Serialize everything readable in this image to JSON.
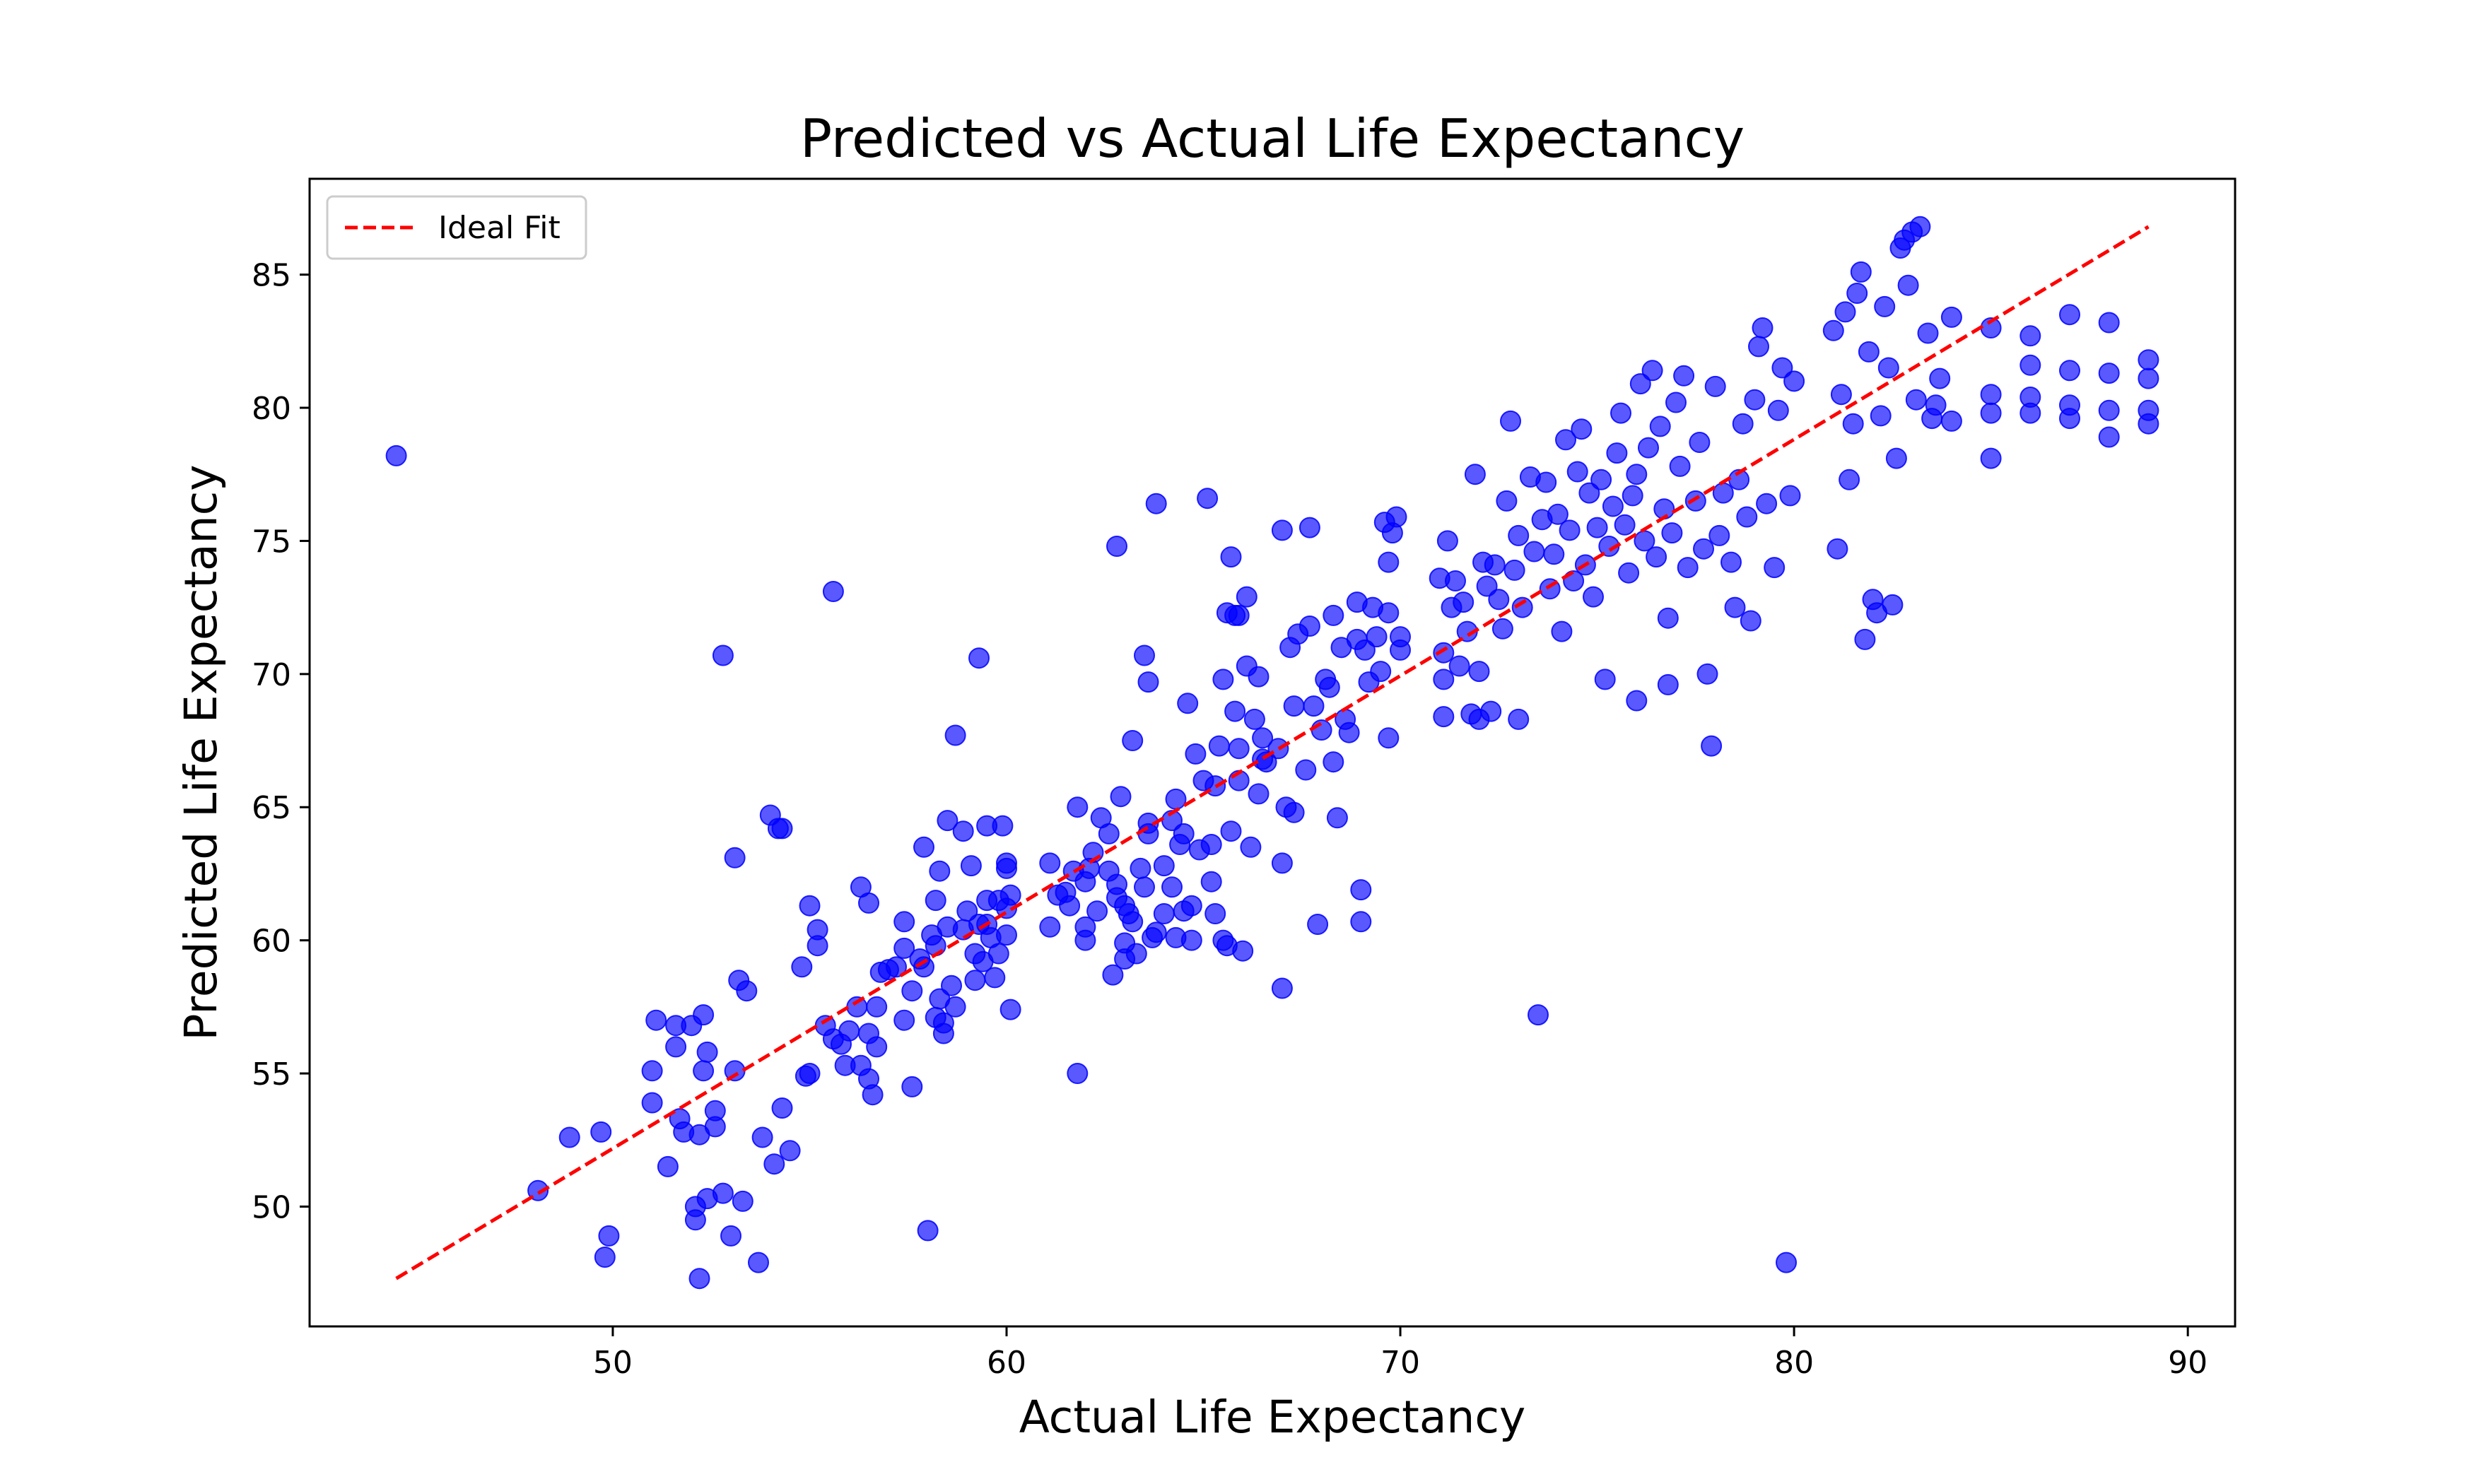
{
  "chart_data": {
    "type": "scatter",
    "title": "Predicted vs Actual Life Expectancy",
    "xlabel": "Actual Life Expectancy",
    "ylabel": "Predicted Life Expectancy",
    "xlim": [
      42.3,
      91.2
    ],
    "ylim": [
      45.5,
      88.6
    ],
    "xticks": [
      50,
      60,
      70,
      80,
      90
    ],
    "yticks": [
      50,
      55,
      60,
      65,
      70,
      75,
      80,
      85
    ],
    "grid": false,
    "legend": {
      "position": "upper-left",
      "entries": [
        "Ideal Fit"
      ]
    },
    "colors": {
      "points": "#0000ff",
      "ideal_line": "#ff0000"
    },
    "ideal_fit": {
      "x": [
        44.5,
        89.0
      ],
      "y": [
        47.3,
        86.8
      ]
    },
    "points": [
      [
        44.5,
        78.2
      ],
      [
        48.1,
        50.6
      ],
      [
        48.9,
        52.6
      ],
      [
        49.7,
        52.8
      ],
      [
        49.8,
        48.1
      ],
      [
        49.9,
        48.9
      ],
      [
        51.0,
        55.1
      ],
      [
        51.0,
        53.9
      ],
      [
        51.1,
        57.0
      ],
      [
        51.4,
        51.5
      ],
      [
        51.6,
        56.8
      ],
      [
        51.6,
        56.0
      ],
      [
        51.7,
        53.3
      ],
      [
        51.8,
        52.8
      ],
      [
        52.0,
        56.8
      ],
      [
        52.1,
        50.0
      ],
      [
        52.1,
        49.5
      ],
      [
        52.2,
        52.7
      ],
      [
        52.2,
        47.3
      ],
      [
        52.3,
        57.2
      ],
      [
        52.3,
        55.1
      ],
      [
        52.4,
        50.3
      ],
      [
        52.4,
        55.8
      ],
      [
        52.6,
        53.0
      ],
      [
        52.6,
        53.6
      ],
      [
        52.8,
        50.5
      ],
      [
        52.8,
        70.7
      ],
      [
        53.0,
        48.9
      ],
      [
        53.1,
        55.1
      ],
      [
        53.1,
        63.1
      ],
      [
        53.2,
        58.5
      ],
      [
        53.3,
        50.2
      ],
      [
        53.4,
        58.1
      ],
      [
        53.7,
        47.9
      ],
      [
        53.8,
        52.6
      ],
      [
        54.0,
        64.7
      ],
      [
        54.1,
        51.6
      ],
      [
        54.2,
        64.2
      ],
      [
        54.3,
        64.2
      ],
      [
        54.3,
        53.7
      ],
      [
        54.5,
        52.1
      ],
      [
        54.8,
        59.0
      ],
      [
        54.9,
        54.9
      ],
      [
        55.0,
        61.3
      ],
      [
        55.0,
        55.0
      ],
      [
        55.2,
        59.8
      ],
      [
        55.2,
        60.4
      ],
      [
        55.4,
        56.8
      ],
      [
        55.6,
        73.1
      ],
      [
        55.6,
        56.3
      ],
      [
        55.8,
        56.1
      ],
      [
        55.9,
        55.3
      ],
      [
        56.0,
        56.6
      ],
      [
        56.2,
        57.5
      ],
      [
        56.3,
        55.3
      ],
      [
        56.3,
        62.0
      ],
      [
        56.5,
        56.5
      ],
      [
        56.5,
        61.4
      ],
      [
        56.5,
        54.8
      ],
      [
        56.6,
        54.2
      ],
      [
        56.7,
        56.0
      ],
      [
        56.7,
        57.5
      ],
      [
        56.8,
        58.8
      ],
      [
        57.0,
        58.9
      ],
      [
        57.2,
        59.0
      ],
      [
        57.4,
        60.7
      ],
      [
        57.4,
        57.0
      ],
      [
        57.4,
        59.7
      ],
      [
        57.6,
        58.1
      ],
      [
        57.6,
        54.5
      ],
      [
        57.8,
        59.3
      ],
      [
        57.9,
        63.5
      ],
      [
        57.9,
        59.0
      ],
      [
        58.0,
        49.1
      ],
      [
        58.1,
        60.2
      ],
      [
        58.2,
        59.8
      ],
      [
        58.2,
        57.1
      ],
      [
        58.2,
        61.5
      ],
      [
        58.3,
        62.6
      ],
      [
        58.3,
        57.8
      ],
      [
        58.4,
        56.9
      ],
      [
        58.4,
        56.5
      ],
      [
        58.5,
        64.5
      ],
      [
        58.5,
        60.5
      ],
      [
        58.6,
        58.3
      ],
      [
        58.7,
        57.5
      ],
      [
        58.7,
        67.7
      ],
      [
        58.9,
        60.4
      ],
      [
        58.9,
        64.1
      ],
      [
        59.0,
        61.1
      ],
      [
        59.1,
        62.8
      ],
      [
        59.2,
        59.5
      ],
      [
        59.2,
        58.5
      ],
      [
        59.3,
        60.6
      ],
      [
        59.3,
        70.6
      ],
      [
        59.4,
        59.2
      ],
      [
        59.5,
        60.6
      ],
      [
        59.5,
        64.3
      ],
      [
        59.5,
        61.5
      ],
      [
        59.6,
        60.1
      ],
      [
        59.7,
        58.6
      ],
      [
        59.8,
        59.5
      ],
      [
        59.8,
        61.5
      ],
      [
        59.9,
        64.3
      ],
      [
        60.0,
        62.7
      ],
      [
        60.0,
        62.9
      ],
      [
        60.0,
        61.2
      ],
      [
        60.0,
        60.2
      ],
      [
        60.1,
        57.4
      ],
      [
        60.1,
        61.7
      ],
      [
        61.1,
        60.5
      ],
      [
        61.1,
        62.9
      ],
      [
        61.3,
        61.7
      ],
      [
        61.5,
        61.8
      ],
      [
        61.6,
        61.3
      ],
      [
        61.7,
        62.6
      ],
      [
        61.8,
        55.0
      ],
      [
        61.8,
        65.0
      ],
      [
        62.0,
        60.5
      ],
      [
        62.0,
        62.2
      ],
      [
        62.0,
        60.0
      ],
      [
        62.1,
        62.7
      ],
      [
        62.2,
        63.3
      ],
      [
        62.3,
        61.1
      ],
      [
        62.4,
        64.6
      ],
      [
        62.6,
        62.6
      ],
      [
        62.6,
        64.0
      ],
      [
        62.7,
        58.7
      ],
      [
        62.8,
        74.8
      ],
      [
        62.8,
        62.1
      ],
      [
        62.8,
        61.6
      ],
      [
        62.9,
        65.4
      ],
      [
        63.0,
        61.3
      ],
      [
        63.0,
        59.9
      ],
      [
        63.0,
        59.3
      ],
      [
        63.1,
        61.0
      ],
      [
        63.2,
        60.7
      ],
      [
        63.2,
        67.5
      ],
      [
        63.3,
        59.5
      ],
      [
        63.4,
        62.7
      ],
      [
        63.5,
        70.7
      ],
      [
        63.5,
        62.0
      ],
      [
        63.6,
        64.0
      ],
      [
        63.6,
        69.7
      ],
      [
        63.6,
        64.4
      ],
      [
        63.7,
        60.1
      ],
      [
        63.8,
        76.4
      ],
      [
        63.8,
        60.3
      ],
      [
        64.0,
        62.8
      ],
      [
        64.0,
        61.0
      ],
      [
        64.2,
        64.5
      ],
      [
        64.2,
        62.0
      ],
      [
        64.3,
        65.3
      ],
      [
        64.3,
        60.1
      ],
      [
        64.4,
        63.6
      ],
      [
        64.5,
        61.1
      ],
      [
        64.5,
        64.0
      ],
      [
        64.6,
        68.9
      ],
      [
        64.7,
        60.0
      ],
      [
        64.7,
        61.3
      ],
      [
        64.8,
        67.0
      ],
      [
        64.9,
        63.4
      ],
      [
        65.0,
        66.0
      ],
      [
        65.1,
        76.6
      ],
      [
        65.2,
        62.2
      ],
      [
        65.2,
        63.6
      ],
      [
        65.3,
        65.8
      ],
      [
        65.3,
        61.0
      ],
      [
        65.4,
        67.3
      ],
      [
        65.5,
        60.0
      ],
      [
        65.5,
        69.8
      ],
      [
        65.6,
        59.8
      ],
      [
        65.6,
        72.3
      ],
      [
        65.7,
        74.4
      ],
      [
        65.7,
        64.1
      ],
      [
        65.8,
        72.2
      ],
      [
        65.8,
        68.6
      ],
      [
        65.9,
        67.2
      ],
      [
        65.9,
        66.0
      ],
      [
        65.9,
        72.2
      ],
      [
        66.0,
        59.6
      ],
      [
        66.1,
        70.3
      ],
      [
        66.1,
        72.9
      ],
      [
        66.2,
        63.5
      ],
      [
        66.3,
        68.3
      ],
      [
        66.4,
        69.9
      ],
      [
        66.4,
        65.5
      ],
      [
        66.5,
        66.8
      ],
      [
        66.5,
        67.6
      ],
      [
        66.6,
        66.7
      ],
      [
        66.9,
        67.2
      ],
      [
        67.0,
        75.4
      ],
      [
        67.0,
        58.2
      ],
      [
        67.0,
        62.9
      ],
      [
        67.1,
        65.0
      ],
      [
        67.2,
        71.0
      ],
      [
        67.3,
        68.8
      ],
      [
        67.3,
        64.8
      ],
      [
        67.4,
        71.5
      ],
      [
        67.6,
        66.4
      ],
      [
        67.7,
        75.5
      ],
      [
        67.7,
        71.8
      ],
      [
        67.8,
        68.8
      ],
      [
        67.9,
        60.6
      ],
      [
        68.0,
        67.9
      ],
      [
        68.1,
        69.8
      ],
      [
        68.2,
        69.5
      ],
      [
        68.3,
        66.7
      ],
      [
        68.3,
        72.2
      ],
      [
        68.4,
        64.6
      ],
      [
        68.5,
        71.0
      ],
      [
        68.6,
        68.3
      ],
      [
        68.7,
        67.8
      ],
      [
        68.9,
        72.7
      ],
      [
        68.9,
        71.3
      ],
      [
        69.0,
        61.9
      ],
      [
        69.0,
        60.7
      ],
      [
        69.1,
        70.9
      ],
      [
        69.2,
        69.7
      ],
      [
        69.3,
        72.5
      ],
      [
        69.4,
        71.4
      ],
      [
        69.5,
        70.1
      ],
      [
        69.6,
        75.7
      ],
      [
        69.7,
        67.6
      ],
      [
        69.7,
        74.2
      ],
      [
        69.7,
        72.3
      ],
      [
        69.8,
        75.3
      ],
      [
        69.9,
        75.9
      ],
      [
        70.0,
        71.4
      ],
      [
        70.0,
        70.9
      ],
      [
        71.0,
        73.6
      ],
      [
        71.1,
        70.8
      ],
      [
        71.1,
        68.4
      ],
      [
        71.1,
        69.8
      ],
      [
        71.2,
        75.0
      ],
      [
        71.3,
        72.5
      ],
      [
        71.4,
        73.5
      ],
      [
        71.5,
        70.3
      ],
      [
        71.6,
        72.7
      ],
      [
        71.7,
        71.6
      ],
      [
        71.8,
        68.5
      ],
      [
        71.9,
        77.5
      ],
      [
        72.0,
        70.1
      ],
      [
        72.0,
        68.3
      ],
      [
        72.1,
        74.2
      ],
      [
        72.2,
        73.3
      ],
      [
        72.3,
        68.6
      ],
      [
        72.4,
        74.1
      ],
      [
        72.5,
        72.8
      ],
      [
        72.6,
        71.7
      ],
      [
        72.7,
        76.5
      ],
      [
        72.8,
        79.5
      ],
      [
        72.9,
        73.9
      ],
      [
        73.0,
        68.3
      ],
      [
        73.0,
        75.2
      ],
      [
        73.1,
        72.5
      ],
      [
        73.3,
        77.4
      ],
      [
        73.4,
        74.6
      ],
      [
        73.5,
        57.2
      ],
      [
        73.6,
        75.8
      ],
      [
        73.7,
        77.2
      ],
      [
        73.8,
        73.2
      ],
      [
        73.9,
        74.5
      ],
      [
        74.0,
        76.0
      ],
      [
        74.1,
        71.6
      ],
      [
        74.2,
        78.8
      ],
      [
        74.3,
        75.4
      ],
      [
        74.4,
        73.5
      ],
      [
        74.5,
        77.6
      ],
      [
        74.6,
        79.2
      ],
      [
        74.7,
        74.1
      ],
      [
        74.8,
        76.8
      ],
      [
        74.9,
        72.9
      ],
      [
        75.0,
        75.5
      ],
      [
        75.1,
        77.3
      ],
      [
        75.2,
        69.8
      ],
      [
        75.3,
        74.8
      ],
      [
        75.4,
        76.3
      ],
      [
        75.5,
        78.3
      ],
      [
        75.6,
        79.8
      ],
      [
        75.7,
        75.6
      ],
      [
        75.8,
        73.8
      ],
      [
        75.9,
        76.7
      ],
      [
        76.0,
        69.0
      ],
      [
        76.0,
        77.5
      ],
      [
        76.1,
        80.9
      ],
      [
        76.2,
        75.0
      ],
      [
        76.3,
        78.5
      ],
      [
        76.4,
        81.4
      ],
      [
        76.5,
        74.4
      ],
      [
        76.6,
        79.3
      ],
      [
        76.7,
        76.2
      ],
      [
        76.8,
        69.6
      ],
      [
        76.8,
        72.1
      ],
      [
        76.9,
        75.3
      ],
      [
        77.0,
        80.2
      ],
      [
        77.1,
        77.8
      ],
      [
        77.2,
        81.2
      ],
      [
        77.3,
        74.0
      ],
      [
        77.5,
        76.5
      ],
      [
        77.6,
        78.7
      ],
      [
        77.7,
        74.7
      ],
      [
        77.8,
        70.0
      ],
      [
        77.9,
        67.3
      ],
      [
        78.0,
        80.8
      ],
      [
        78.1,
        75.2
      ],
      [
        78.2,
        76.8
      ],
      [
        78.4,
        74.2
      ],
      [
        78.5,
        72.5
      ],
      [
        78.6,
        77.3
      ],
      [
        78.7,
        79.4
      ],
      [
        78.8,
        75.9
      ],
      [
        78.9,
        72.0
      ],
      [
        79.0,
        80.3
      ],
      [
        79.1,
        82.3
      ],
      [
        79.2,
        83.0
      ],
      [
        79.3,
        76.4
      ],
      [
        79.5,
        74.0
      ],
      [
        79.6,
        79.9
      ],
      [
        79.7,
        81.5
      ],
      [
        79.8,
        47.9
      ],
      [
        79.9,
        76.7
      ],
      [
        80.0,
        81.0
      ],
      [
        81.0,
        82.9
      ],
      [
        81.1,
        74.7
      ],
      [
        81.2,
        80.5
      ],
      [
        81.3,
        83.6
      ],
      [
        81.4,
        77.3
      ],
      [
        81.5,
        79.4
      ],
      [
        81.6,
        84.3
      ],
      [
        81.7,
        85.1
      ],
      [
        81.8,
        71.3
      ],
      [
        81.9,
        82.1
      ],
      [
        82.0,
        72.8
      ],
      [
        82.1,
        72.3
      ],
      [
        82.2,
        79.7
      ],
      [
        82.3,
        83.8
      ],
      [
        82.4,
        81.5
      ],
      [
        82.5,
        72.6
      ],
      [
        82.6,
        78.1
      ],
      [
        82.7,
        86.0
      ],
      [
        82.8,
        86.3
      ],
      [
        82.9,
        84.6
      ],
      [
        83.0,
        86.6
      ],
      [
        83.1,
        80.3
      ],
      [
        83.2,
        86.8
      ],
      [
        83.4,
        82.8
      ],
      [
        83.5,
        79.6
      ],
      [
        83.6,
        80.1
      ],
      [
        83.7,
        81.1
      ],
      [
        84.0,
        83.4
      ],
      [
        84.0,
        79.5
      ],
      [
        85.0,
        83.0
      ],
      [
        85.0,
        80.5
      ],
      [
        85.0,
        79.8
      ],
      [
        85.0,
        78.1
      ],
      [
        86.0,
        82.7
      ],
      [
        86.0,
        81.6
      ],
      [
        86.0,
        80.4
      ],
      [
        86.0,
        79.8
      ],
      [
        87.0,
        83.5
      ],
      [
        87.0,
        81.4
      ],
      [
        87.0,
        80.1
      ],
      [
        87.0,
        79.6
      ],
      [
        88.0,
        83.2
      ],
      [
        88.0,
        81.3
      ],
      [
        88.0,
        79.9
      ],
      [
        88.0,
        78.9
      ],
      [
        89.0,
        81.8
      ],
      [
        89.0,
        81.1
      ],
      [
        89.0,
        79.9
      ],
      [
        89.0,
        79.4
      ]
    ]
  }
}
